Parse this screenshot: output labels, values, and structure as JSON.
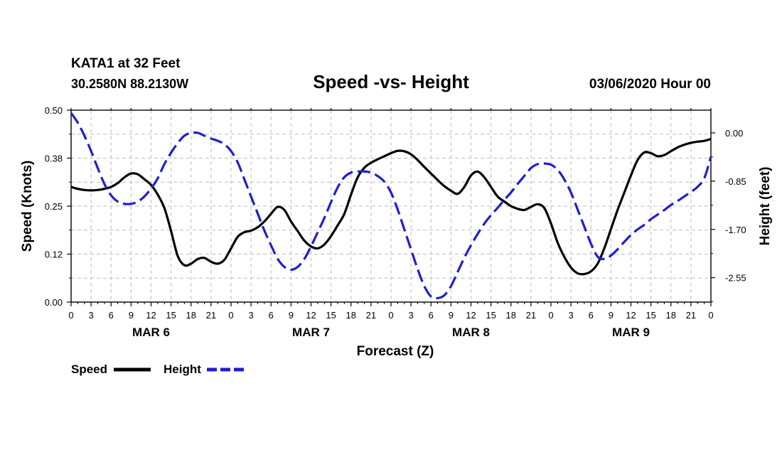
{
  "header": {
    "station": "KATA1 at 32 Feet",
    "coords": "30.2580N 88.2130W",
    "title": "Speed -vs- Height",
    "datetime": "03/06/2020 Hour 00"
  },
  "chart_data": {
    "type": "line",
    "title": "Speed -vs- Height",
    "xlabel": "Forecast (Z)",
    "ylabel_left": "Speed (Knots)",
    "ylabel_right": "Height (feet)",
    "x_unit": "forecast hours since 03/06/2020 00Z",
    "xlim": [
      0,
      96
    ],
    "ylim_left": [
      0,
      0.5
    ],
    "ylim_right": [
      -2.98,
      0.4
    ],
    "y_ticks_left": [
      "0.00",
      "0.12",
      "0.25",
      "0.38",
      "0.50"
    ],
    "y_ticks_right": [
      "0.00",
      "-0.85",
      "-1.70",
      "-2.55"
    ],
    "x_ticks": [
      "0",
      "3",
      "6",
      "9",
      "12",
      "15",
      "18",
      "21",
      "0",
      "3",
      "6",
      "9",
      "12",
      "15",
      "18",
      "21",
      "0",
      "3",
      "6",
      "9",
      "12",
      "15",
      "18",
      "21",
      "0",
      "3",
      "6",
      "9",
      "12",
      "15",
      "18",
      "21",
      "0"
    ],
    "day_labels": [
      {
        "label": "MAR 6",
        "hour": 12
      },
      {
        "label": "MAR 7",
        "hour": 36
      },
      {
        "label": "MAR 8",
        "hour": 60
      },
      {
        "label": "MAR 9",
        "hour": 84
      }
    ],
    "grid": true,
    "legend_position": "bottom-left",
    "series": [
      {
        "name": "Speed",
        "axis": "left",
        "color": "#000000",
        "style": "solid",
        "x": [
          0,
          1,
          2,
          3,
          4,
          5,
          6,
          7,
          8,
          9,
          10,
          11,
          12,
          13,
          14,
          15,
          16,
          17,
          18,
          19,
          20,
          21,
          22,
          23,
          24,
          25,
          26,
          27,
          28,
          29,
          30,
          31,
          32,
          33,
          34,
          35,
          36,
          37,
          38,
          39,
          40,
          41,
          42,
          43,
          44,
          45,
          46,
          47,
          48,
          49,
          50,
          51,
          52,
          53,
          54,
          55,
          56,
          57,
          58,
          59,
          60,
          61,
          62,
          63,
          64,
          65,
          66,
          67,
          68,
          69,
          70,
          71,
          72,
          73,
          74,
          75,
          76,
          77,
          78,
          79,
          80,
          81,
          82,
          83,
          84,
          85,
          86,
          87,
          88,
          89,
          90,
          91,
          92,
          93,
          94,
          95,
          96
        ],
        "values": [
          0.3,
          0.295,
          0.292,
          0.291,
          0.292,
          0.295,
          0.3,
          0.31,
          0.325,
          0.335,
          0.333,
          0.32,
          0.305,
          0.28,
          0.245,
          0.185,
          0.12,
          0.096,
          0.1,
          0.112,
          0.115,
          0.105,
          0.1,
          0.11,
          0.14,
          0.17,
          0.182,
          0.186,
          0.195,
          0.21,
          0.23,
          0.248,
          0.24,
          0.21,
          0.185,
          0.16,
          0.145,
          0.14,
          0.15,
          0.172,
          0.2,
          0.23,
          0.28,
          0.325,
          0.35,
          0.363,
          0.372,
          0.38,
          0.388,
          0.394,
          0.393,
          0.385,
          0.37,
          0.352,
          0.335,
          0.318,
          0.302,
          0.29,
          0.282,
          0.3,
          0.33,
          0.34,
          0.325,
          0.3,
          0.275,
          0.262,
          0.25,
          0.243,
          0.24,
          0.248,
          0.255,
          0.245,
          0.205,
          0.155,
          0.118,
          0.09,
          0.075,
          0.073,
          0.08,
          0.1,
          0.14,
          0.19,
          0.24,
          0.285,
          0.33,
          0.37,
          0.39,
          0.388,
          0.38,
          0.383,
          0.393,
          0.403,
          0.41,
          0.415,
          0.418,
          0.42,
          0.425
        ]
      },
      {
        "name": "Height",
        "axis": "right",
        "color": "#1f1fcc",
        "style": "dashed",
        "x": [
          0,
          1,
          2,
          3,
          4,
          5,
          6,
          7,
          8,
          9,
          10,
          11,
          12,
          13,
          14,
          15,
          16,
          17,
          18,
          19,
          20,
          21,
          22,
          23,
          24,
          25,
          26,
          27,
          28,
          29,
          30,
          31,
          32,
          33,
          34,
          35,
          36,
          37,
          38,
          39,
          40,
          41,
          42,
          43,
          44,
          45,
          46,
          47,
          48,
          49,
          50,
          51,
          52,
          53,
          54,
          55,
          56,
          57,
          58,
          59,
          60,
          61,
          62,
          63,
          64,
          65,
          66,
          67,
          68,
          69,
          70,
          71,
          72,
          73,
          74,
          75,
          76,
          77,
          78,
          79,
          80,
          81,
          82,
          83,
          84,
          85,
          86,
          87,
          88,
          89,
          90,
          91,
          92,
          93,
          94,
          95,
          96
        ],
        "values": [
          0.35,
          0.18,
          -0.05,
          -0.32,
          -0.62,
          -0.9,
          -1.1,
          -1.21,
          -1.25,
          -1.25,
          -1.21,
          -1.12,
          -0.98,
          -0.8,
          -0.55,
          -0.35,
          -0.18,
          -0.05,
          0.0,
          0.0,
          -0.05,
          -0.1,
          -0.14,
          -0.2,
          -0.32,
          -0.52,
          -0.82,
          -1.12,
          -1.42,
          -1.72,
          -1.98,
          -2.22,
          -2.36,
          -2.41,
          -2.36,
          -2.22,
          -2.0,
          -1.75,
          -1.5,
          -1.22,
          -0.96,
          -0.78,
          -0.7,
          -0.68,
          -0.68,
          -0.7,
          -0.76,
          -0.86,
          -1.05,
          -1.35,
          -1.7,
          -2.05,
          -2.4,
          -2.7,
          -2.88,
          -2.91,
          -2.86,
          -2.7,
          -2.45,
          -2.2,
          -1.98,
          -1.78,
          -1.6,
          -1.45,
          -1.32,
          -1.18,
          -1.05,
          -0.9,
          -0.76,
          -0.62,
          -0.55,
          -0.54,
          -0.56,
          -0.65,
          -0.82,
          -1.05,
          -1.35,
          -1.65,
          -1.95,
          -2.18,
          -2.22,
          -2.16,
          -2.05,
          -1.92,
          -1.8,
          -1.7,
          -1.62,
          -1.52,
          -1.44,
          -1.36,
          -1.27,
          -1.2,
          -1.12,
          -1.04,
          -0.95,
          -0.8,
          -0.42
        ]
      }
    ]
  }
}
